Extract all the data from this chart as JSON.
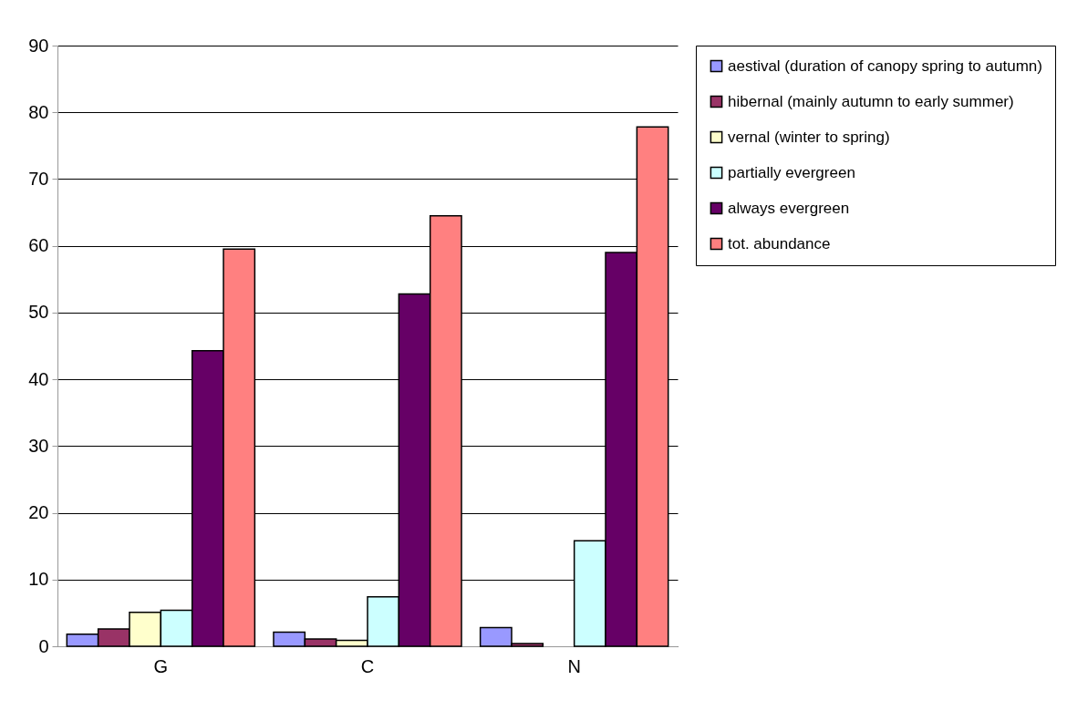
{
  "chart_data": {
    "type": "bar",
    "categories": [
      "G",
      "C",
      "N"
    ],
    "series": [
      {
        "name": "aestival (duration of canopy spring to autumn)",
        "color": "#9999ff",
        "values": [
          1.8,
          2.1,
          2.8
        ]
      },
      {
        "name": " hibernal (mainly autumn to early summer)",
        "color": "#993366",
        "values": [
          2.6,
          1.1,
          0.4
        ]
      },
      {
        "name": "vernal (winter to spring)",
        "color": "#ffffcc",
        "values": [
          5.1,
          0.9,
          null
        ]
      },
      {
        "name": " partially evergreen",
        "color": "#ccffff",
        "values": [
          5.4,
          7.4,
          15.8
        ]
      },
      {
        "name": "always evergreen",
        "color": "#660066",
        "values": [
          44.3,
          52.8,
          59.0
        ]
      },
      {
        "name": "tot. abundance",
        "color": "#ff8080",
        "values": [
          59.5,
          64.5,
          77.8
        ]
      }
    ],
    "ylim": [
      0,
      90
    ],
    "yticks": [
      0,
      10,
      20,
      30,
      40,
      50,
      60,
      70,
      80,
      90
    ],
    "grid": "y",
    "legend": "right"
  }
}
